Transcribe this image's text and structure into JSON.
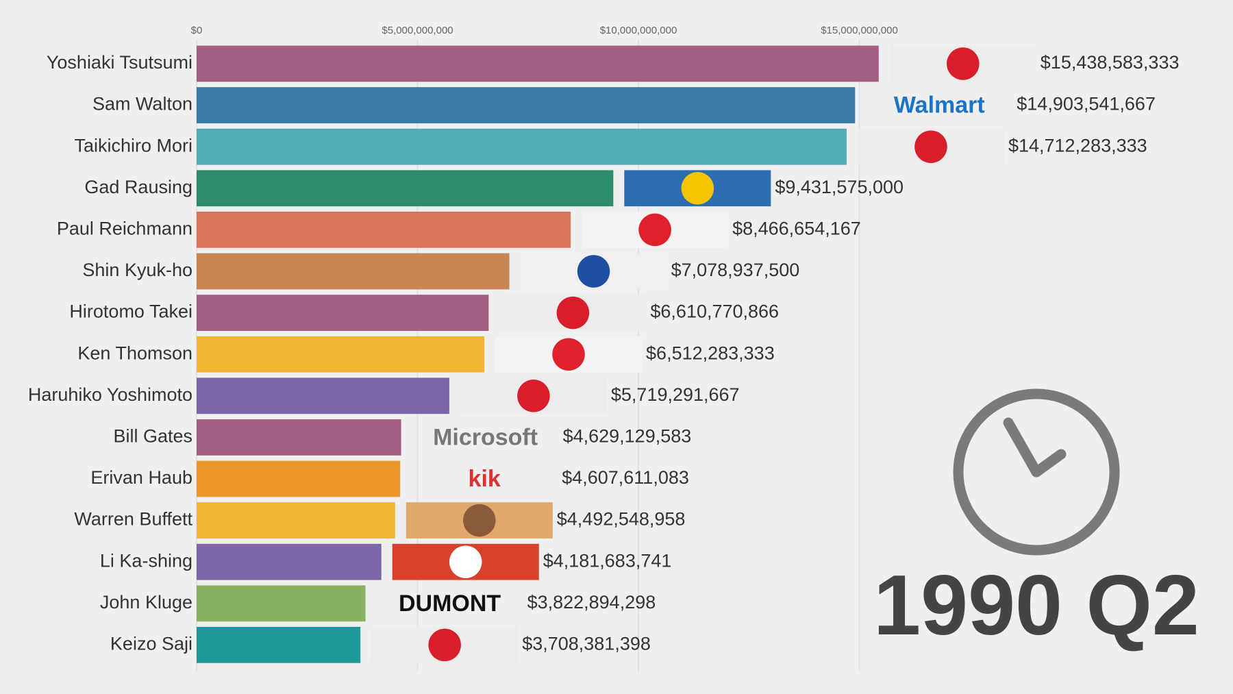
{
  "chart_data": {
    "type": "bar",
    "orientation": "horizontal",
    "period": "1990 Q2",
    "categories": [
      "Yoshiaki Tsutsumi",
      "Sam Walton",
      "Taikichiro Mori",
      "Gad Rausing",
      "Paul Reichmann",
      "Shin Kyuk-ho",
      "Hirotomo Takei",
      "Ken Thomson",
      "Haruhiko Yoshimoto",
      "Bill Gates",
      "Erivan Haub",
      "Warren Buffett",
      "Li Ka-shing",
      "John Kluge",
      "Keizo Saji"
    ],
    "values": [
      15438583333,
      14903541667,
      14712283333,
      9431575000,
      8466654167,
      7078937500,
      6610770866,
      6512283333,
      5719291667,
      4629129583,
      4607611083,
      4492548958,
      4181683741,
      3822894298,
      3708381398
    ],
    "value_labels": [
      "$15,438,583,333",
      "$14,903,541,667",
      "$14,712,283,333",
      "$9,431,575,000",
      "$8,466,654,167",
      "$7,078,937,500",
      "$6,610,770,866",
      "$6,512,283,333",
      "$5,719,291,667",
      "$4,629,129,583",
      "$4,607,611,083",
      "$4,492,548,958",
      "$4,181,683,741",
      "$3,822,894,298",
      "$3,708,381,398"
    ],
    "colors": [
      "#a45f84",
      "#3a7aa8",
      "#4fabb5",
      "#2e8b6b",
      "#d9735a",
      "#c98552",
      "#a45f84",
      "#f2b531",
      "#7b66a6",
      "#a45f84",
      "#ec952b",
      "#f2b531",
      "#7b66a6",
      "#88b262",
      "#1f9a9c"
    ],
    "badges": [
      {
        "colors": [
          "#ececec",
          "#d81e2a"
        ]
      },
      {
        "text": "Walmart",
        "color": "#1a74c9"
      },
      {
        "colors": [
          "#ececec",
          "#d81e2a"
        ]
      },
      {
        "colors": [
          "#2c6db0",
          "#f5c400"
        ]
      },
      {
        "colors": [
          "#f4f4f4",
          "#e0202a"
        ]
      },
      {
        "colors": [
          "#f0f0f0",
          "#1f4fa0"
        ]
      },
      {
        "colors": [
          "#ececec",
          "#d81e2a"
        ]
      },
      {
        "colors": [
          "#f4f4f4",
          "#e0202a"
        ]
      },
      {
        "colors": [
          "#ececec",
          "#d81e2a"
        ]
      },
      {
        "text": "Microsoft",
        "color": "#777777"
      },
      {
        "text": "kik",
        "color": "#e03030"
      },
      {
        "colors": [
          "#e0a86a",
          "#8a5a3a"
        ]
      },
      {
        "colors": [
          "#d9402a",
          "#ffffff"
        ]
      },
      {
        "text": "DUMONT",
        "color": "#111111"
      },
      {
        "colors": [
          "#ececec",
          "#d81e2a"
        ]
      }
    ],
    "xlim": [
      0,
      22000000000
    ],
    "xticks": [
      {
        "value": 0,
        "label": "$0"
      },
      {
        "value": 5000000000,
        "label": "$5,000,000,000"
      },
      {
        "value": 10000000000,
        "label": "$10,000,000,000"
      },
      {
        "value": 15000000000,
        "label": "$15,000,000,000"
      }
    ],
    "grid": true
  }
}
